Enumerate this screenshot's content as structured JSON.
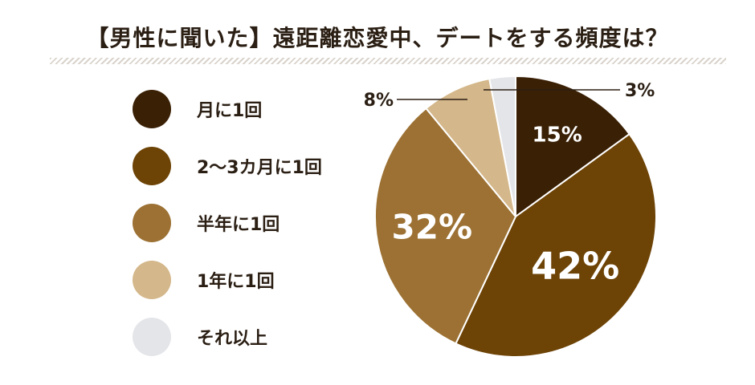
{
  "title": "【男性に聞いた】遠距離恋愛中、デートをする頻度は？",
  "chart_data": {
    "type": "pie",
    "categories": [
      "月に1回",
      "2〜3カ月に1回",
      "半年に1回",
      "1年に1回",
      "それ以上"
    ],
    "values": [
      15,
      42,
      32,
      8,
      3
    ],
    "value_labels": [
      "15%",
      "42%",
      "32%",
      "8%",
      "3%"
    ],
    "colors": [
      "#3a2005",
      "#6d4306",
      "#9c7133",
      "#d4b78a",
      "#e4e5e9"
    ],
    "label_colors": [
      "#ffffff",
      "#ffffff",
      "#ffffff",
      "#2b1f14",
      "#2b1f14"
    ],
    "legend_position": "left",
    "start_angle": 0,
    "direction": "clockwise"
  }
}
